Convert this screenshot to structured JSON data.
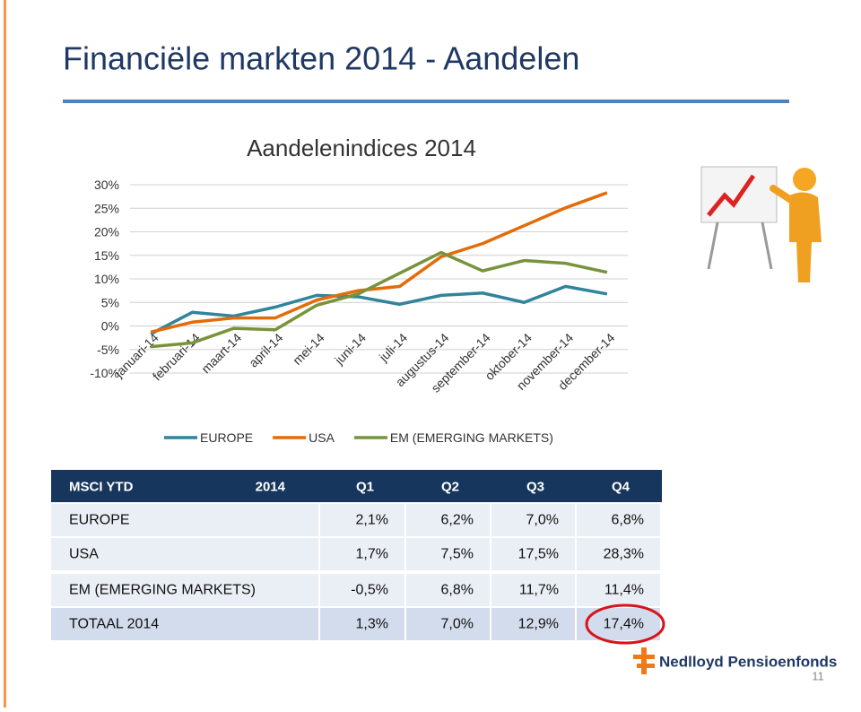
{
  "title": "Financiële markten 2014 - Aandelen",
  "chart_data": {
    "type": "line",
    "title": "Aandelenindices 2014",
    "categories": [
      "januari-14",
      "februari-14",
      "maart-14",
      "april-14",
      "mei-14",
      "juni-14",
      "juli-14",
      "augustus-14",
      "september-14",
      "oktober-14",
      "november-14",
      "december-14"
    ],
    "series": [
      {
        "name": "EUROPE",
        "color": "#31849b",
        "values": [
          -1.7,
          2.9,
          2.1,
          4.0,
          6.5,
          6.2,
          4.6,
          6.5,
          7.0,
          5.0,
          8.4,
          6.8
        ]
      },
      {
        "name": "USA",
        "color": "#e36c09",
        "values": [
          -1.3,
          0.8,
          1.7,
          1.7,
          5.5,
          7.5,
          8.4,
          14.7,
          17.5,
          21.3,
          25.1,
          28.3
        ]
      },
      {
        "name": "EM (EMERGING MARKETS)",
        "color": "#77933c",
        "values": [
          -4.4,
          -3.6,
          -0.5,
          -0.8,
          4.4,
          6.8,
          11.2,
          15.6,
          11.7,
          13.9,
          13.3,
          11.4
        ]
      }
    ],
    "ylim": [
      -10,
      30
    ],
    "yticks": [
      {
        "value": -10,
        "label": "-10%"
      },
      {
        "value": -5,
        "label": "-5%"
      },
      {
        "value": 0,
        "label": "0%"
      },
      {
        "value": 5,
        "label": "5%"
      },
      {
        "value": 10,
        "label": "10%"
      },
      {
        "value": 15,
        "label": "15%"
      },
      {
        "value": 20,
        "label": "20%"
      },
      {
        "value": 25,
        "label": "25%"
      },
      {
        "value": 30,
        "label": "30%"
      }
    ],
    "grid": true,
    "legend": "bottom"
  },
  "table": {
    "header": [
      "MSCI YTD",
      "2014",
      "Q1",
      "Q2",
      "Q3",
      "Q4"
    ],
    "rows": [
      [
        "EUROPE",
        "2,1%",
        "6,2%",
        "7,0%",
        "6,8%"
      ],
      [
        "USA",
        "1,7%",
        "7,5%",
        "17,5%",
        "28,3%"
      ],
      [
        "EM (EMERGING MARKETS)",
        "-0,5%",
        "6,8%",
        "11,7%",
        "11,4%"
      ],
      [
        "TOTAAL 2014",
        "1,3%",
        "7,0%",
        "12,9%",
        "17,4%"
      ]
    ]
  },
  "logo": "Nedlloyd Pensioenfonds",
  "page_number": "11"
}
